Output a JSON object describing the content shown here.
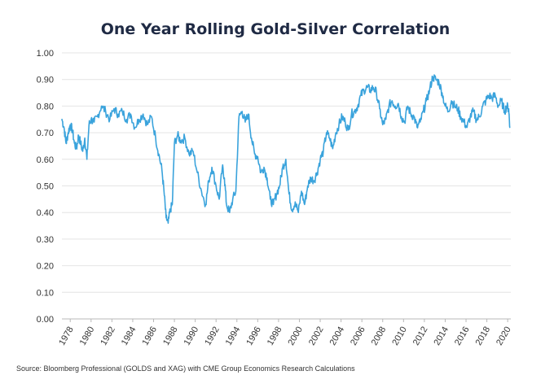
{
  "chart_data": {
    "type": "line",
    "title": "One Year Rolling Gold-Silver Correlation",
    "xlabel": "",
    "ylabel": "",
    "source": "Source: Bloomberg Professional (GOLDS and XAG) with CME Group Economics Research Calculations",
    "xlim": [
      1977.2,
      2020.3
    ],
    "ylim": [
      0,
      1
    ],
    "grid": true,
    "legend": "none",
    "line_color": "#3aa3dc",
    "y_ticks": [
      "0.00",
      "0.10",
      "0.20",
      "0.30",
      "0.40",
      "0.50",
      "0.60",
      "0.70",
      "0.80",
      "0.90",
      "1.00"
    ],
    "x_ticks": [
      "1978",
      "1980",
      "1982",
      "1984",
      "1986",
      "1988",
      "1990",
      "1992",
      "1994",
      "1996",
      "1998",
      "2000",
      "2002",
      "2004",
      "2006",
      "2008",
      "2010",
      "2012",
      "2014",
      "2016",
      "2018",
      "2020"
    ],
    "series": [
      {
        "x": [
          1977.2,
          1977.4,
          1977.6,
          1977.8,
          1978.0,
          1978.2,
          1978.4,
          1978.6,
          1978.8,
          1979.0,
          1979.2,
          1979.4,
          1979.6,
          1979.8,
          1980.0,
          1980.3,
          1980.6,
          1981.0,
          1981.4,
          1981.8,
          1982.2,
          1982.6,
          1983.0,
          1983.4,
          1983.8,
          1984.2,
          1984.6,
          1985.0,
          1985.4,
          1985.8,
          1986.2,
          1986.5,
          1986.8,
          1987.0,
          1987.2,
          1987.4,
          1987.6,
          1987.8,
          1988.0,
          1988.3,
          1988.6,
          1989.0,
          1989.4,
          1989.8,
          1990.2,
          1990.6,
          1991.0,
          1991.3,
          1991.6,
          1992.0,
          1992.3,
          1992.6,
          1992.8,
          1993.0,
          1993.3,
          1993.6,
          1993.9,
          1994.2,
          1994.5,
          1994.8,
          1995.1,
          1995.4,
          1995.7,
          1996.0,
          1996.3,
          1996.6,
          1996.9,
          1997.2,
          1997.5,
          1997.8,
          1998.1,
          1998.4,
          1998.7,
          1999.0,
          1999.3,
          1999.6,
          1999.9,
          2000.2,
          2000.5,
          2000.8,
          2001.1,
          2001.4,
          2001.7,
          2002.0,
          2002.3,
          2002.6,
          2002.9,
          2003.2,
          2003.5,
          2003.8,
          2004.1,
          2004.4,
          2004.7,
          2005.0,
          2005.3,
          2005.6,
          2005.9,
          2006.2,
          2006.5,
          2006.8,
          2007.1,
          2007.4,
          2007.7,
          2008.0,
          2008.3,
          2008.6,
          2008.9,
          2009.2,
          2009.5,
          2009.8,
          2010.1,
          2010.4,
          2010.7,
          2011.0,
          2011.3,
          2011.6,
          2011.9,
          2012.2,
          2012.5,
          2012.8,
          2013.1,
          2013.4,
          2013.7,
          2014.0,
          2014.3,
          2014.6,
          2014.9,
          2015.2,
          2015.5,
          2015.8,
          2016.1,
          2016.4,
          2016.7,
          2017.0,
          2017.3,
          2017.6,
          2017.9,
          2018.2,
          2018.5,
          2018.8,
          2019.1,
          2019.4,
          2019.7,
          2019.9,
          2020.1,
          2020.2
        ],
        "values": [
          0.75,
          0.72,
          0.66,
          0.7,
          0.73,
          0.71,
          0.66,
          0.64,
          0.69,
          0.66,
          0.63,
          0.68,
          0.6,
          0.73,
          0.75,
          0.74,
          0.76,
          0.8,
          0.78,
          0.75,
          0.79,
          0.77,
          0.78,
          0.75,
          0.77,
          0.72,
          0.75,
          0.77,
          0.73,
          0.76,
          0.68,
          0.62,
          0.56,
          0.48,
          0.38,
          0.36,
          0.41,
          0.43,
          0.66,
          0.69,
          0.67,
          0.68,
          0.62,
          0.63,
          0.55,
          0.48,
          0.43,
          0.52,
          0.57,
          0.5,
          0.45,
          0.57,
          0.53,
          0.43,
          0.4,
          0.45,
          0.48,
          0.76,
          0.78,
          0.74,
          0.77,
          0.68,
          0.62,
          0.61,
          0.55,
          0.57,
          0.53,
          0.45,
          0.43,
          0.47,
          0.5,
          0.57,
          0.6,
          0.47,
          0.41,
          0.44,
          0.4,
          0.48,
          0.43,
          0.5,
          0.53,
          0.52,
          0.55,
          0.6,
          0.63,
          0.7,
          0.68,
          0.64,
          0.7,
          0.73,
          0.76,
          0.74,
          0.71,
          0.77,
          0.78,
          0.8,
          0.84,
          0.86,
          0.87,
          0.86,
          0.87,
          0.85,
          0.79,
          0.73,
          0.75,
          0.8,
          0.82,
          0.8,
          0.81,
          0.76,
          0.74,
          0.8,
          0.77,
          0.76,
          0.72,
          0.74,
          0.78,
          0.82,
          0.86,
          0.91,
          0.9,
          0.89,
          0.85,
          0.8,
          0.78,
          0.82,
          0.8,
          0.79,
          0.76,
          0.74,
          0.72,
          0.76,
          0.78,
          0.75,
          0.76,
          0.8,
          0.82,
          0.84,
          0.83,
          0.84,
          0.8,
          0.82,
          0.78,
          0.8,
          0.79,
          0.72
        ]
      }
    ]
  }
}
